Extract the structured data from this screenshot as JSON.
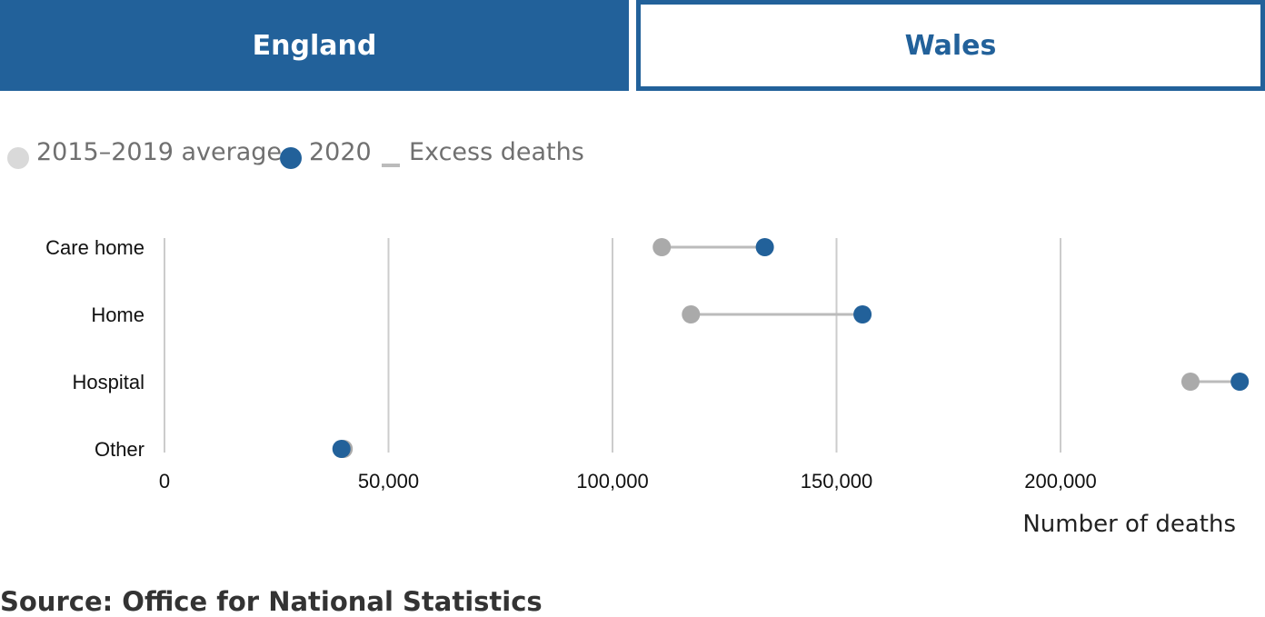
{
  "tabs": [
    {
      "label": "England",
      "active": true
    },
    {
      "label": "Wales",
      "active": false
    }
  ],
  "colors": {
    "accent": "#22619a",
    "average_dot": "#aaaaaa",
    "legend_average_dot": "#d9d9d9",
    "excess_line": "#bbbbbb",
    "grid": "#cccccc"
  },
  "legend": {
    "average": "2015–2019 average",
    "year2020": "2020",
    "excess": "Excess deaths"
  },
  "chart_data": {
    "type": "dot-range",
    "categories": [
      "Care home",
      "Home",
      "Hospital",
      "Other"
    ],
    "series": [
      {
        "name": "2015–2019 average",
        "values": [
          111000,
          117500,
          229000,
          40000
        ]
      },
      {
        "name": "2020",
        "values": [
          134000,
          155800,
          240000,
          39500
        ]
      }
    ],
    "xlim": [
      0,
      240000
    ],
    "xticks": [
      0,
      50000,
      100000,
      150000,
      200000
    ],
    "xtick_labels": [
      "0",
      "50,000",
      "100,000",
      "150,000",
      "200,000"
    ],
    "xlabel": "Number of deaths",
    "grid": true,
    "legend_position": "top-left"
  },
  "source": "Source: Office for National Statistics"
}
